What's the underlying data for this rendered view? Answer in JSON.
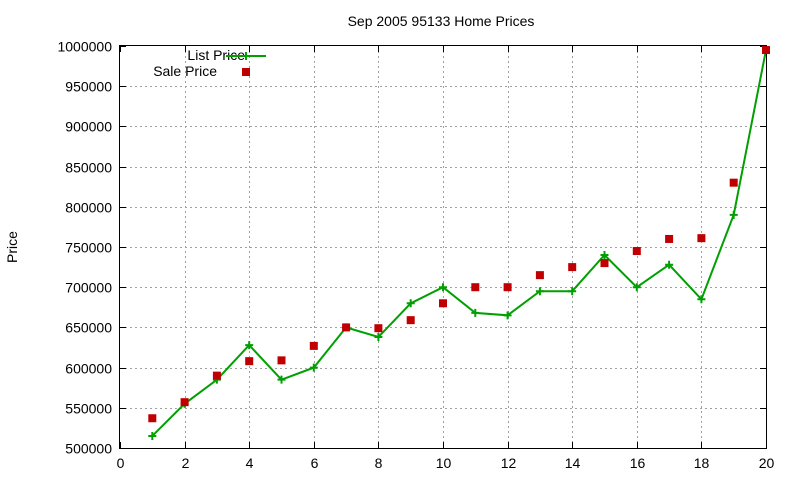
{
  "chart_data": {
    "type": "line",
    "title": "Sep 2005 95133 Home Prices",
    "xlabel": "",
    "ylabel": "Price",
    "xlim": [
      0,
      20
    ],
    "ylim": [
      500000,
      1000000
    ],
    "xticks": [
      0,
      2,
      4,
      6,
      8,
      10,
      12,
      14,
      16,
      18,
      20
    ],
    "yticks": [
      500000,
      550000,
      600000,
      650000,
      700000,
      750000,
      800000,
      850000,
      900000,
      950000,
      1000000
    ],
    "grid": true,
    "legend_position": "top-left",
    "x": [
      1,
      2,
      3,
      4,
      5,
      6,
      7,
      8,
      9,
      10,
      11,
      12,
      13,
      14,
      15,
      16,
      17,
      18,
      19,
      20
    ],
    "series": [
      {
        "name": "List Price",
        "style": "line-with-plus-markers",
        "color": "#00a000",
        "values": [
          515000,
          555000,
          585000,
          628000,
          585000,
          600000,
          650000,
          638000,
          680000,
          700000,
          668000,
          665000,
          695000,
          695000,
          740000,
          700000,
          728000,
          685000,
          790000,
          995000
        ]
      },
      {
        "name": "Sale Price",
        "style": "square-points",
        "color": "#c00000",
        "values": [
          537000,
          557000,
          590000,
          608000,
          609000,
          627000,
          650000,
          649000,
          659000,
          680000,
          700000,
          700000,
          715000,
          725000,
          730000,
          745000,
          760000,
          761000,
          830000,
          995000
        ]
      }
    ]
  }
}
